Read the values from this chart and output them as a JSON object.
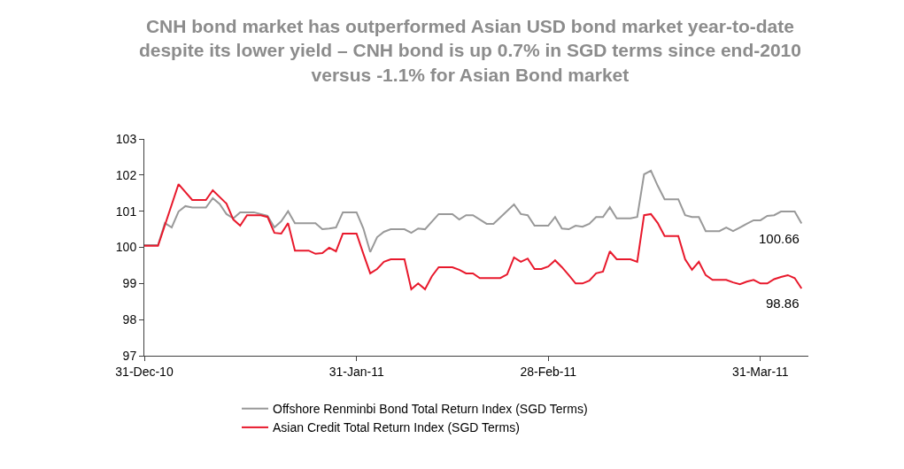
{
  "chart_data": {
    "type": "line",
    "title": "CNH bond market has outperformed Asian USD bond market year-to-date despite its lower yield – CNH bond is up 0.7% in SGD terms since end-2010 versus -1.1% for Asian Bond market",
    "xlim": [
      "2010-12-31",
      "2011-04-07"
    ],
    "xticks": [
      {
        "value": "2010-12-31",
        "label": "31-Dec-10"
      },
      {
        "value": "2011-01-31",
        "label": "31-Jan-11"
      },
      {
        "value": "2011-02-28",
        "label": "28-Feb-11"
      },
      {
        "value": "2011-03-31",
        "label": "31-Mar-11"
      }
    ],
    "ylim": [
      97,
      103
    ],
    "yticks": [
      97,
      98,
      99,
      100,
      101,
      102,
      103
    ],
    "legend": "bottom",
    "marker": "none",
    "line_style": "solid",
    "series": [
      {
        "name": "Offshore Renminbi Bond Total Return Index (SGD Terms)",
        "color": "#999999",
        "x": [
          "2010-12-31",
          "2011-01-02",
          "2011-01-03",
          "2011-01-04",
          "2011-01-05",
          "2011-01-06",
          "2011-01-07",
          "2011-01-09",
          "2011-01-10",
          "2011-01-11",
          "2011-01-12",
          "2011-01-13",
          "2011-01-14",
          "2011-01-16",
          "2011-01-18",
          "2011-01-19",
          "2011-01-20",
          "2011-01-21",
          "2011-01-22",
          "2011-01-25",
          "2011-01-26",
          "2011-01-27",
          "2011-01-28",
          "2011-01-29",
          "2011-01-31",
          "2011-02-01",
          "2011-02-02",
          "2011-02-03",
          "2011-02-04",
          "2011-02-05",
          "2011-02-07",
          "2011-02-08",
          "2011-02-09",
          "2011-02-10",
          "2011-02-12",
          "2011-02-14",
          "2011-02-15",
          "2011-02-16",
          "2011-02-17",
          "2011-02-19",
          "2011-02-20",
          "2011-02-23",
          "2011-02-24",
          "2011-02-25",
          "2011-02-26",
          "2011-02-28",
          "2011-03-01",
          "2011-03-02",
          "2011-03-03",
          "2011-03-04",
          "2011-03-05",
          "2011-03-06",
          "2011-03-07",
          "2011-03-08",
          "2011-03-09",
          "2011-03-10",
          "2011-03-12",
          "2011-03-13",
          "2011-03-14",
          "2011-03-15",
          "2011-03-16",
          "2011-03-17",
          "2011-03-19",
          "2011-03-20",
          "2011-03-21",
          "2011-03-22",
          "2011-03-23",
          "2011-03-25",
          "2011-03-26",
          "2011-03-27",
          "2011-03-28",
          "2011-03-29",
          "2011-03-30",
          "2011-03-31",
          "2011-04-01",
          "2011-04-02",
          "2011-04-03",
          "2011-04-05",
          "2011-04-06"
        ],
        "values": [
          100.06,
          100.06,
          100.67,
          100.55,
          100.99,
          101.14,
          101.1,
          101.1,
          101.36,
          101.2,
          100.92,
          100.8,
          100.97,
          100.97,
          100.87,
          100.55,
          100.72,
          101.0,
          100.67,
          100.67,
          100.5,
          100.52,
          100.55,
          100.97,
          100.97,
          100.52,
          99.87,
          100.28,
          100.43,
          100.5,
          100.5,
          100.4,
          100.52,
          100.5,
          100.92,
          100.92,
          100.77,
          100.89,
          100.89,
          100.65,
          100.65,
          101.19,
          100.92,
          100.89,
          100.6,
          100.6,
          100.84,
          100.52,
          100.5,
          100.6,
          100.57,
          100.65,
          100.84,
          100.84,
          101.11,
          100.8,
          100.8,
          100.84,
          102.02,
          102.12,
          101.7,
          101.33,
          101.33,
          100.89,
          100.84,
          100.84,
          100.45,
          100.45,
          100.55,
          100.45,
          100.55,
          100.65,
          100.75,
          100.75,
          100.87,
          100.89,
          100.99,
          100.99,
          100.66
        ]
      },
      {
        "name": "Asian Credit Total Return Index (SGD Terms)",
        "color": "#e8192c",
        "x": [
          "2010-12-31",
          "2011-01-02",
          "2011-01-05",
          "2011-01-07",
          "2011-01-09",
          "2011-01-10",
          "2011-01-12",
          "2011-01-13",
          "2011-01-14",
          "2011-01-15",
          "2011-01-17",
          "2011-01-18",
          "2011-01-19",
          "2011-01-20",
          "2011-01-21",
          "2011-01-22",
          "2011-01-24",
          "2011-01-25",
          "2011-01-26",
          "2011-01-27",
          "2011-01-28",
          "2011-01-29",
          "2011-01-31",
          "2011-02-01",
          "2011-02-02",
          "2011-02-03",
          "2011-02-04",
          "2011-02-05",
          "2011-02-07",
          "2011-02-08",
          "2011-02-09",
          "2011-02-10",
          "2011-02-11",
          "2011-02-12",
          "2011-02-14",
          "2011-02-15",
          "2011-02-16",
          "2011-02-17",
          "2011-02-18",
          "2011-02-21",
          "2011-02-22",
          "2011-02-23",
          "2011-02-24",
          "2011-02-25",
          "2011-02-26",
          "2011-02-27",
          "2011-02-28",
          "2011-03-01",
          "2011-03-02",
          "2011-03-03",
          "2011-03-04",
          "2011-03-05",
          "2011-03-06",
          "2011-03-07",
          "2011-03-08",
          "2011-03-09",
          "2011-03-10",
          "2011-03-12",
          "2011-03-13",
          "2011-03-14",
          "2011-03-15",
          "2011-03-16",
          "2011-03-17",
          "2011-03-19",
          "2011-03-20",
          "2011-03-21",
          "2011-03-22",
          "2011-03-23",
          "2011-03-24",
          "2011-03-26",
          "2011-03-27",
          "2011-03-28",
          "2011-03-29",
          "2011-03-30",
          "2011-03-31",
          "2011-04-01",
          "2011-04-02",
          "2011-04-03",
          "2011-04-04",
          "2011-04-05",
          "2011-04-06"
        ],
        "values": [
          100.04,
          100.04,
          101.75,
          101.31,
          101.31,
          101.58,
          101.21,
          100.77,
          100.6,
          100.89,
          100.89,
          100.84,
          100.4,
          100.38,
          100.67,
          99.91,
          99.91,
          99.82,
          99.84,
          99.99,
          99.89,
          100.38,
          100.38,
          99.82,
          99.28,
          99.4,
          99.6,
          99.67,
          99.67,
          98.84,
          99.0,
          98.84,
          99.2,
          99.45,
          99.45,
          99.38,
          99.28,
          99.28,
          99.15,
          99.15,
          99.25,
          99.72,
          99.6,
          99.69,
          99.4,
          99.4,
          99.47,
          99.64,
          99.45,
          99.23,
          99.0,
          99.0,
          99.08,
          99.28,
          99.33,
          99.89,
          99.67,
          99.67,
          99.6,
          100.89,
          100.92,
          100.67,
          100.31,
          100.31,
          99.67,
          99.38,
          99.6,
          99.23,
          99.1,
          99.1,
          99.03,
          98.98,
          99.05,
          99.1,
          99.0,
          99.0,
          99.12,
          99.18,
          99.23,
          99.15,
          98.86
        ]
      }
    ],
    "annotations": [
      {
        "text": "100.66",
        "x": "2011-04-06",
        "y": 100.66
      },
      {
        "text": "98.86",
        "x": "2011-04-06",
        "y": 98.86
      }
    ]
  }
}
